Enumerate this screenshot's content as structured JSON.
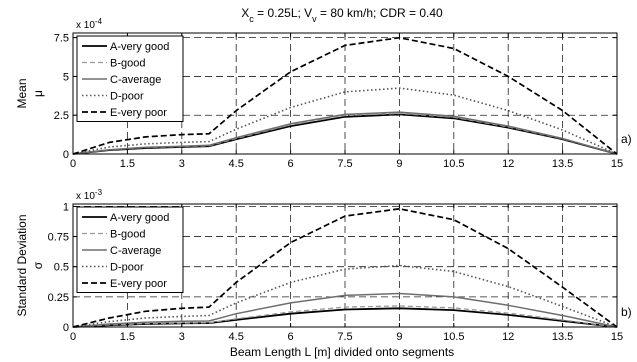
{
  "figure": {
    "title": "X_c = 0.25L; V_v = 80 km/h; CDR = 0.40",
    "xlabel": "Beam Length L [m] divided onto segments"
  },
  "chart_data": [
    {
      "type": "line",
      "panel_label": "a)",
      "ylabel_line1": "Mean",
      "ylabel_line2": "μ",
      "y_multiplier": "x 10",
      "y_exponent": "-4",
      "xlim": [
        0,
        15
      ],
      "ylim": [
        0,
        7.8
      ],
      "xticks": [
        0,
        1.5,
        3,
        4.5,
        6,
        7.5,
        9,
        10.5,
        12,
        13.5,
        15
      ],
      "xtick_labels": [
        "0",
        "1.5",
        "3",
        "4.5",
        "6",
        "7.5",
        "9",
        "10.5",
        "12",
        "13.5",
        "15"
      ],
      "yticks": [
        0,
        2.5,
        5,
        7.5
      ],
      "ytick_labels": [
        "0",
        "2.5",
        "5",
        "7.5"
      ],
      "grid": true,
      "legend_position": "top-left",
      "x": [
        0,
        1,
        2,
        3,
        3.75,
        4.5,
        6,
        7.5,
        9,
        10.5,
        12,
        13.5,
        15
      ],
      "series": [
        {
          "name": "A-very good",
          "style": "solid",
          "color": "#000000",
          "values": [
            0,
            0.25,
            0.38,
            0.45,
            0.5,
            0.95,
            1.8,
            2.4,
            2.55,
            2.3,
            1.7,
            0.95,
            0
          ]
        },
        {
          "name": "B-good",
          "style": "dashed-light",
          "color": "#9a9a9a",
          "values": [
            0,
            0.27,
            0.41,
            0.48,
            0.53,
            1.0,
            1.88,
            2.48,
            2.62,
            2.37,
            1.75,
            0.98,
            0
          ]
        },
        {
          "name": "C-average",
          "style": "solid-gray",
          "color": "#6e6e6e",
          "values": [
            0,
            0.28,
            0.43,
            0.5,
            0.56,
            1.05,
            1.95,
            2.55,
            2.7,
            2.43,
            1.8,
            1.0,
            0
          ]
        },
        {
          "name": "D-poor",
          "style": "dotted",
          "color": "#555555",
          "values": [
            0,
            0.45,
            0.65,
            0.75,
            0.8,
            1.6,
            3.0,
            4.0,
            4.25,
            3.8,
            2.8,
            1.55,
            0
          ]
        },
        {
          "name": "E-very poor",
          "style": "dashed",
          "color": "#000000",
          "values": [
            0,
            0.75,
            1.1,
            1.25,
            1.3,
            2.8,
            5.3,
            7.0,
            7.5,
            6.8,
            5.0,
            2.8,
            0
          ]
        }
      ]
    },
    {
      "type": "line",
      "panel_label": "b)",
      "ylabel_line1": "Standard Deviation",
      "ylabel_line2": "σ",
      "y_multiplier": "x 10",
      "y_exponent": "-3",
      "xlim": [
        0,
        15
      ],
      "ylim": [
        0,
        1.02
      ],
      "xticks": [
        0,
        1.5,
        3,
        4.5,
        6,
        7.5,
        9,
        10.5,
        12,
        13.5,
        15
      ],
      "xtick_labels": [
        "0",
        "1.5",
        "3",
        "4.5",
        "6",
        "7.5",
        "9",
        "10.5",
        "12",
        "13.5",
        "15"
      ],
      "yticks": [
        0,
        0.25,
        0.5,
        0.75,
        1
      ],
      "ytick_labels": [
        "0",
        "0.25",
        "0.5",
        "0.75",
        "1"
      ],
      "grid": true,
      "legend_position": "top-left",
      "x": [
        0,
        1,
        2,
        3,
        3.75,
        4.5,
        6,
        7.5,
        9,
        10.5,
        12,
        13.5,
        15
      ],
      "series": [
        {
          "name": "A-very good",
          "style": "solid",
          "color": "#000000",
          "values": [
            0,
            0.015,
            0.025,
            0.03,
            0.032,
            0.06,
            0.11,
            0.145,
            0.155,
            0.14,
            0.1,
            0.05,
            0
          ]
        },
        {
          "name": "B-good",
          "style": "dashed-light",
          "color": "#9a9a9a",
          "values": [
            0,
            0.017,
            0.028,
            0.033,
            0.035,
            0.068,
            0.125,
            0.165,
            0.175,
            0.158,
            0.115,
            0.058,
            0
          ]
        },
        {
          "name": "C-average",
          "style": "solid-gray",
          "color": "#6e6e6e",
          "values": [
            0,
            0.025,
            0.04,
            0.048,
            0.05,
            0.11,
            0.2,
            0.262,
            0.278,
            0.25,
            0.18,
            0.095,
            0
          ]
        },
        {
          "name": "D-poor",
          "style": "dotted",
          "color": "#555555",
          "values": [
            0,
            0.045,
            0.075,
            0.088,
            0.095,
            0.2,
            0.37,
            0.48,
            0.51,
            0.46,
            0.335,
            0.17,
            0
          ]
        },
        {
          "name": "E-very poor",
          "style": "dashed",
          "color": "#000000",
          "values": [
            0,
            0.075,
            0.13,
            0.155,
            0.165,
            0.37,
            0.7,
            0.92,
            0.98,
            0.89,
            0.65,
            0.33,
            0
          ]
        }
      ]
    }
  ]
}
